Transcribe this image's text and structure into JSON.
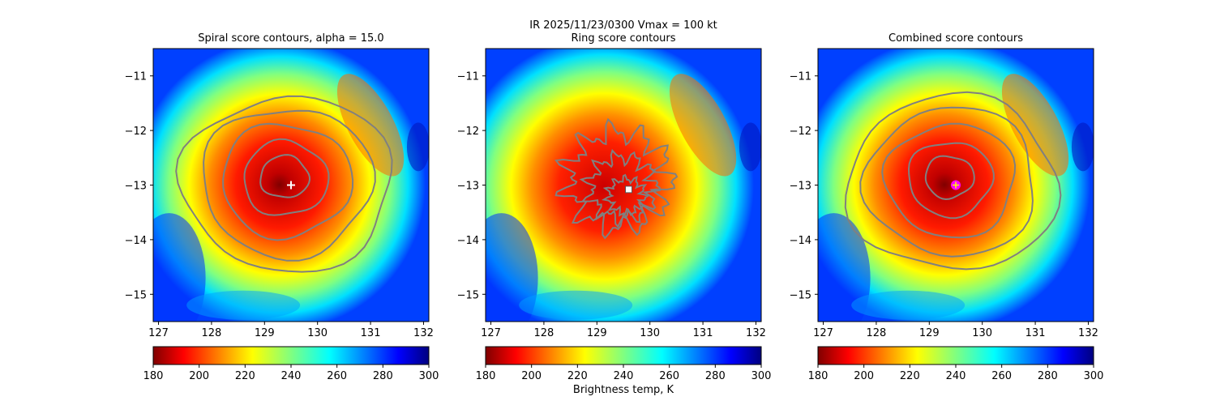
{
  "figure": {
    "suptitle_line1": "IR  2025/11/23/0300    Vmax = 100 kt",
    "colorbar_label": "Brightness temp, K"
  },
  "chart_data": [
    {
      "type": "heatmap",
      "title": "Spiral score contours, alpha = 15.0",
      "colormap": "jet",
      "xlim": [
        126.9,
        132.1
      ],
      "ylim": [
        -15.5,
        -10.5
      ],
      "xticks": [
        127,
        128,
        129,
        130,
        131,
        132
      ],
      "yticks": [
        -11,
        -12,
        -13,
        -14,
        -15
      ],
      "xtick_labels": [
        "127",
        "128",
        "129",
        "130",
        "131",
        "132"
      ],
      "ytick_labels": [
        "−11",
        "−12",
        "−13",
        "−14",
        "−15"
      ],
      "center": {
        "lon": 129.5,
        "lat": -13.0
      },
      "marker": {
        "lon": 129.5,
        "lat": -13.0,
        "symbol": "plus",
        "color": "#ffffff"
      },
      "contour_color": "#808080",
      "colorbar": {
        "min": 180,
        "max": 300,
        "ticks": [
          180,
          200,
          220,
          240,
          260,
          280,
          300
        ]
      }
    },
    {
      "type": "heatmap",
      "title": "Ring score contours",
      "colormap": "jet",
      "xlim": [
        126.9,
        132.1
      ],
      "ylim": [
        -15.5,
        -10.5
      ],
      "xticks": [
        127,
        128,
        129,
        130,
        131,
        132
      ],
      "yticks": [
        -11,
        -12,
        -13,
        -14,
        -15
      ],
      "xtick_labels": [
        "127",
        "128",
        "129",
        "130",
        "131",
        "132"
      ],
      "ytick_labels": [
        "−11",
        "−12",
        "−13",
        "−14",
        "−15"
      ],
      "center": {
        "lon": 129.4,
        "lat": -12.9
      },
      "marker": {
        "lon": 129.6,
        "lat": -13.08,
        "symbol": "square",
        "color": "#ffffff"
      },
      "contour_color": "#808080",
      "colorbar": {
        "min": 180,
        "max": 300,
        "ticks": [
          180,
          200,
          220,
          240,
          260,
          280,
          300
        ]
      }
    },
    {
      "type": "heatmap",
      "title": "Combined score contours",
      "colormap": "jet",
      "xlim": [
        126.9,
        132.1
      ],
      "ylim": [
        -15.5,
        -10.5
      ],
      "xticks": [
        127,
        128,
        129,
        130,
        131,
        132
      ],
      "yticks": [
        -11,
        -12,
        -13,
        -14,
        -15
      ],
      "xtick_labels": [
        "127",
        "128",
        "129",
        "130",
        "131",
        "132"
      ],
      "ytick_labels": [
        "−11",
        "−12",
        "−13",
        "−14",
        "−15"
      ],
      "center": {
        "lon": 129.5,
        "lat": -13.0
      },
      "marker": {
        "lon": 129.5,
        "lat": -13.0,
        "symbol": "circle-plus",
        "color": "#ff00ff"
      },
      "contour_color": "#808080",
      "colorbar": {
        "min": 180,
        "max": 300,
        "ticks": [
          180,
          200,
          220,
          240,
          260,
          280,
          300
        ]
      }
    }
  ]
}
